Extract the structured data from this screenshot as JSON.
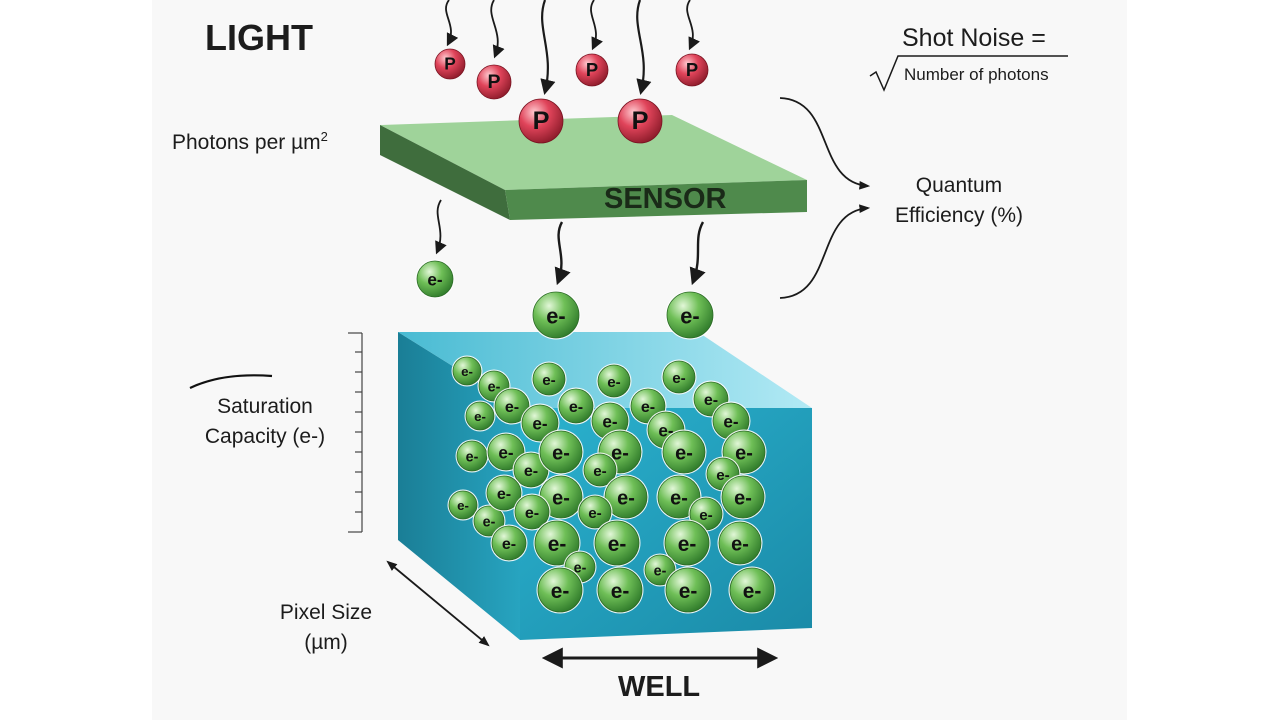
{
  "labels": {
    "light": "LIGHT",
    "photons_per_area": "Photons per µm",
    "photons_per_area_sup": "2",
    "sensor": "SENSOR",
    "shot_noise_title": "Shot Noise =",
    "shot_noise_denominator": "Number of photons",
    "quantum_efficiency_line1": "Quantum",
    "quantum_efficiency_line2": "Efficiency (%)",
    "saturation_line1": "Saturation",
    "saturation_line2": "Capacity (e-)",
    "pixel_size_line1": "Pixel Size",
    "pixel_size_line2": "(µm)",
    "well": "WELL"
  },
  "particle_labels": {
    "photon": "P",
    "electron": "e-"
  },
  "colors": {
    "photon": "#d4324a",
    "electron": "#5aad45",
    "sensor_top": "#9fd39a",
    "sensor_front": "#4a7a48",
    "well": "#2aa6c4",
    "arrow": "#1a1a1a"
  }
}
